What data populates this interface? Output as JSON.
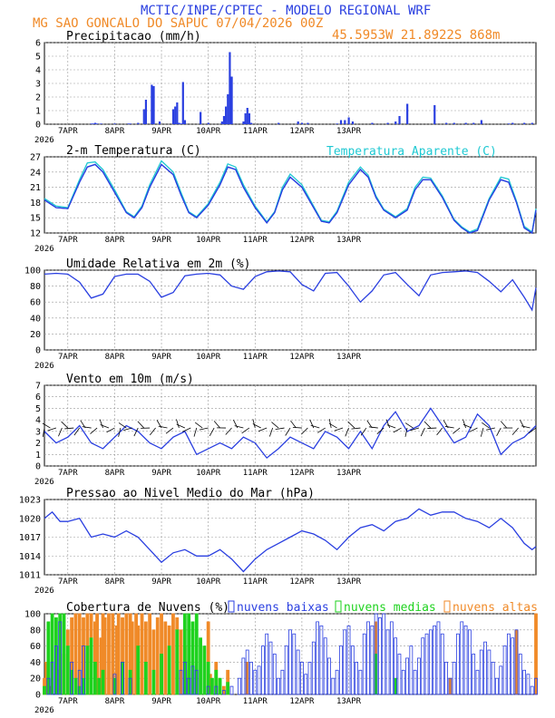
{
  "header": {
    "line1": "MCTIC/INPE/CPTEC - MODELO REGIONAL WRF",
    "line2": "MG SAO GONCALO DO SAPUC   07/04/2026 00Z",
    "coords": "45.5953W 21.8922S 868m"
  },
  "colors": {
    "blue": "#2a3fe0",
    "cyan": "#1ec8d2",
    "green": "#1ed21e",
    "orange": "#f08a28",
    "black": "#000000"
  },
  "x_axis": {
    "day_labels": [
      "7APR",
      "8APR",
      "9APR",
      "10APR",
      "11APR",
      "12APR",
      "13APR"
    ],
    "year_label": "2026"
  },
  "panels": {
    "precip": {
      "title": "Precipitacao (mm/h)"
    },
    "temp": {
      "title": "2-m Temperatura (C)",
      "legend": "Temperatura Aparente (C)"
    },
    "rh": {
      "title": "Umidade Relativa em 2m (%)"
    },
    "wind": {
      "title": "Vento em 10m (m/s)"
    },
    "press": {
      "title": "Pressao ao Nivel Medio do Mar (hPa)"
    },
    "clouds": {
      "title": "Cobertura de Nuvens (%)",
      "legend_low": "nuvens baixas",
      "legend_mid": "nuvens medias",
      "legend_high": "nuvens altas"
    }
  },
  "chart_data": [
    {
      "type": "bar",
      "title": "Precipitacao (mm/h)",
      "ylim": [
        0,
        6
      ],
      "yticks": [
        "0",
        "1",
        "2",
        "3",
        "4",
        "5",
        "6"
      ],
      "x_hours": [
        24,
        25,
        26,
        27,
        29,
        36,
        43,
        44,
        48,
        51,
        52,
        55,
        56,
        59,
        66,
        67,
        68,
        69,
        70,
        71,
        72,
        80,
        84,
        91,
        92,
        93,
        94,
        95,
        96,
        102,
        103,
        104,
        105,
        106,
        120,
        130,
        132,
        135,
        150,
        152,
        154,
        156,
        158,
        168,
        176,
        180,
        182,
        186,
        200,
        206,
        210,
        216,
        220,
        224,
        238,
        240,
        246,
        250
      ],
      "values": [
        0.05,
        0.05,
        0.1,
        0.05,
        0.05,
        0.05,
        0.05,
        0.05,
        0.1,
        1.1,
        1.8,
        2.9,
        2.8,
        0.2,
        1.1,
        1.3,
        1.6,
        0.1,
        0.05,
        3.1,
        0.3,
        0.9,
        0.1,
        0.2,
        0.6,
        1.3,
        2.2,
        5.3,
        3.5,
        0.2,
        0.8,
        1.2,
        0.8,
        0.1,
        0.1,
        0.2,
        0.1,
        0.1,
        0.05,
        0.3,
        0.3,
        0.5,
        0.2,
        0.1,
        0.1,
        0.2,
        0.6,
        1.5,
        1.4,
        0.1,
        0.1,
        0.1,
        0.1,
        0.3,
        0.05,
        0.1,
        0.1,
        0.1
      ]
    },
    {
      "type": "line",
      "title": "2-m Temperatura (C)",
      "ylim": [
        12,
        27
      ],
      "yticks": [
        "12",
        "15",
        "18",
        "21",
        "24",
        "27"
      ],
      "x_hours": [
        0,
        6,
        12,
        18,
        22,
        26,
        30,
        36,
        42,
        46,
        50,
        54,
        60,
        66,
        70,
        74,
        78,
        84,
        90,
        94,
        98,
        102,
        108,
        114,
        118,
        122,
        126,
        132,
        138,
        142,
        146,
        150,
        156,
        162,
        166,
        170,
        174,
        180,
        186,
        190,
        194,
        198,
        204,
        210,
        214,
        218,
        222,
        228,
        234,
        238,
        242,
        246,
        250,
        252
      ],
      "series": [
        {
          "name": "",
          "values": [
            18.5,
            17,
            16.8,
            22,
            25,
            25.5,
            24,
            20,
            16,
            15,
            17,
            21,
            25.5,
            23.5,
            19.5,
            16,
            15,
            17.5,
            21.5,
            25,
            24.5,
            21,
            17,
            14,
            16,
            20.5,
            23,
            21,
            17,
            14.3,
            14,
            16,
            21.5,
            24.5,
            23,
            19,
            16.5,
            15,
            16.5,
            20.5,
            22.5,
            22.5,
            19,
            14.5,
            13,
            12,
            12.5,
            18.5,
            22.5,
            22,
            18,
            13,
            12,
            16.5
          ]
        },
        {
          "name": "Temperatura Aparente (C)",
          "values": [
            18.8,
            17.3,
            17,
            22.5,
            25.8,
            26,
            24.5,
            20.5,
            16.2,
            15.2,
            17.3,
            21.5,
            26.2,
            24,
            20,
            16.2,
            15.2,
            17.8,
            22,
            25.6,
            25,
            21.5,
            17.3,
            14.2,
            16.2,
            21,
            23.6,
            21.5,
            17.3,
            14.5,
            14.2,
            16.3,
            22,
            25,
            23.4,
            19.3,
            16.7,
            15.2,
            16.8,
            21,
            23,
            22.8,
            19.3,
            14.7,
            13.2,
            12.2,
            12.8,
            18.8,
            23,
            22.6,
            18.3,
            13.3,
            12.2,
            16.8
          ]
        }
      ]
    },
    {
      "type": "line",
      "title": "Umidade Relativa em 2m (%)",
      "ylim": [
        0,
        100
      ],
      "yticks": [
        "0",
        "20",
        "40",
        "60",
        "80",
        "100"
      ],
      "x_hours": [
        0,
        6,
        12,
        18,
        24,
        30,
        36,
        42,
        48,
        54,
        60,
        66,
        72,
        78,
        84,
        90,
        96,
        102,
        108,
        114,
        120,
        126,
        132,
        138,
        144,
        150,
        156,
        162,
        168,
        174,
        180,
        186,
        192,
        198,
        204,
        210,
        216,
        222,
        228,
        234,
        240,
        246,
        250,
        252
      ],
      "series": [
        {
          "name": "",
          "values": [
            95,
            96,
            95,
            85,
            65,
            70,
            92,
            95,
            95,
            86,
            66,
            72,
            93,
            95,
            96,
            94,
            80,
            76,
            92,
            98,
            99,
            98,
            82,
            74,
            96,
            97,
            80,
            60,
            74,
            94,
            97,
            82,
            68,
            94,
            97,
            98,
            99,
            97,
            86,
            73,
            88,
            66,
            50,
            78
          ]
        }
      ]
    },
    {
      "type": "line",
      "title": "Vento em 10m (m/s)",
      "ylim": [
        0,
        7
      ],
      "yticks": [
        "0",
        "1",
        "2",
        "3",
        "4",
        "5",
        "6",
        "7"
      ],
      "x_hours": [
        0,
        6,
        12,
        18,
        24,
        30,
        36,
        42,
        48,
        54,
        60,
        66,
        72,
        78,
        84,
        90,
        96,
        102,
        108,
        114,
        120,
        126,
        132,
        138,
        144,
        150,
        156,
        162,
        168,
        174,
        180,
        186,
        192,
        198,
        204,
        210,
        216,
        222,
        228,
        234,
        240,
        246,
        252
      ],
      "series": [
        {
          "name": "",
          "values": [
            3,
            2,
            2.5,
            3.5,
            2,
            1.5,
            2.5,
            3.5,
            3,
            2,
            1.5,
            2.5,
            3,
            1,
            1.5,
            2,
            1.5,
            2.5,
            2,
            0.7,
            1.5,
            2.5,
            2,
            1.5,
            3,
            2.5,
            1.5,
            3,
            1.5,
            3.5,
            4.7,
            3,
            3.5,
            5,
            3.5,
            2,
            2.5,
            4.5,
            3.5,
            1,
            2,
            2.5,
            3.5
          ]
        }
      ]
    },
    {
      "type": "line",
      "title": "Pressao ao Nivel Medio do Mar (hPa)",
      "ylim": [
        1011,
        1023
      ],
      "yticks": [
        "1011",
        "1014",
        "1017",
        "1020",
        "1023"
      ],
      "x_hours": [
        0,
        4,
        8,
        12,
        18,
        24,
        30,
        36,
        42,
        48,
        54,
        60,
        66,
        72,
        78,
        84,
        90,
        96,
        102,
        108,
        114,
        120,
        126,
        132,
        138,
        144,
        150,
        156,
        162,
        168,
        174,
        180,
        186,
        192,
        198,
        204,
        210,
        216,
        222,
        228,
        234,
        240,
        246,
        250,
        252
      ],
      "series": [
        {
          "name": "",
          "values": [
            1020,
            1021,
            1019.5,
            1019.5,
            1020,
            1017,
            1017.5,
            1017,
            1018,
            1017,
            1015,
            1013,
            1014.5,
            1015,
            1014,
            1014,
            1015,
            1013.5,
            1011.5,
            1013.5,
            1015,
            1016,
            1017,
            1018,
            1017.5,
            1016.5,
            1015,
            1017,
            1018.5,
            1019,
            1018,
            1019.5,
            1020,
            1021.5,
            1020.5,
            1021,
            1021,
            1020,
            1019.5,
            1018.5,
            1020,
            1018.5,
            1016,
            1015,
            1015.5
          ]
        }
      ]
    },
    {
      "type": "bar",
      "title": "Cobertura de Nuvens (%)",
      "ylim": [
        0,
        100
      ],
      "yticks": [
        "0",
        "20",
        "40",
        "60",
        "80",
        "100"
      ],
      "series": [
        {
          "name": "nuvens altas",
          "x_hours": [
            0,
            1,
            3,
            6,
            8,
            10,
            12,
            14,
            16,
            18,
            20,
            22,
            24,
            26,
            27,
            29,
            30,
            31,
            33,
            35,
            37,
            38,
            40,
            42,
            44,
            45,
            47,
            48,
            50,
            52,
            54,
            56,
            58,
            60,
            62,
            64,
            66,
            68,
            70,
            72,
            74,
            84,
            85,
            88,
            92,
            94,
            104,
            170,
            208,
            242,
            252
          ],
          "values": [
            20,
            40,
            10,
            5,
            30,
            50,
            80,
            95,
            100,
            100,
            95,
            100,
            100,
            90,
            100,
            70,
            100,
            95,
            100,
            100,
            85,
            100,
            95,
            100,
            100,
            90,
            100,
            85,
            100,
            90,
            100,
            80,
            95,
            100,
            90,
            85,
            100,
            95,
            80,
            60,
            30,
            90,
            25,
            40,
            10,
            30,
            40,
            90,
            20,
            80,
            100
          ]
        },
        {
          "name": "nuvens medias",
          "x_hours": [
            0,
            2,
            4,
            6,
            8,
            10,
            12,
            14,
            16,
            18,
            20,
            22,
            24,
            26,
            28,
            30,
            36,
            40,
            44,
            48,
            52,
            56,
            60,
            64,
            68,
            72,
            74,
            76,
            78,
            80,
            82,
            84,
            86,
            88,
            90,
            94,
            170,
            180
          ],
          "values": [
            10,
            90,
            100,
            95,
            100,
            100,
            60,
            30,
            20,
            10,
            20,
            60,
            70,
            40,
            20,
            30,
            20,
            40,
            30,
            60,
            40,
            30,
            50,
            60,
            80,
            100,
            100,
            90,
            100,
            70,
            60,
            40,
            20,
            30,
            20,
            15,
            50,
            20
          ]
        },
        {
          "name": "nuvens baixas",
          "x_hours": [
            2,
            4,
            6,
            8,
            14,
            18,
            20,
            36,
            40,
            44,
            70,
            72,
            74,
            76,
            78,
            84,
            88,
            92,
            96,
            100,
            102,
            104,
            106,
            108,
            110,
            112,
            114,
            116,
            118,
            120,
            122,
            124,
            126,
            128,
            130,
            132,
            134,
            136,
            138,
            140,
            142,
            144,
            146,
            148,
            150,
            152,
            154,
            156,
            158,
            160,
            162,
            164,
            166,
            168,
            170,
            172,
            174,
            176,
            178,
            180,
            182,
            184,
            186,
            188,
            190,
            192,
            194,
            196,
            198,
            200,
            202,
            204,
            206,
            208,
            210,
            212,
            214,
            216,
            218,
            220,
            222,
            224,
            226,
            228,
            230,
            232,
            234,
            236,
            238,
            240,
            242,
            244,
            246,
            248,
            250,
            252
          ],
          "values": [
            20,
            40,
            60,
            90,
            40,
            30,
            60,
            25,
            40,
            20,
            30,
            40,
            20,
            35,
            30,
            10,
            10,
            5,
            10,
            20,
            45,
            55,
            40,
            30,
            35,
            60,
            75,
            65,
            50,
            20,
            30,
            60,
            80,
            75,
            55,
            40,
            25,
            40,
            65,
            90,
            85,
            70,
            45,
            20,
            30,
            60,
            80,
            85,
            60,
            40,
            30,
            75,
            90,
            85,
            100,
            95,
            100,
            80,
            90,
            70,
            50,
            30,
            45,
            60,
            30,
            45,
            70,
            75,
            80,
            85,
            90,
            75,
            40,
            20,
            40,
            75,
            90,
            85,
            80,
            50,
            30,
            55,
            65,
            55,
            40,
            20,
            35,
            60,
            75,
            70,
            80,
            50,
            30,
            25,
            10,
            20
          ]
        }
      ]
    }
  ]
}
